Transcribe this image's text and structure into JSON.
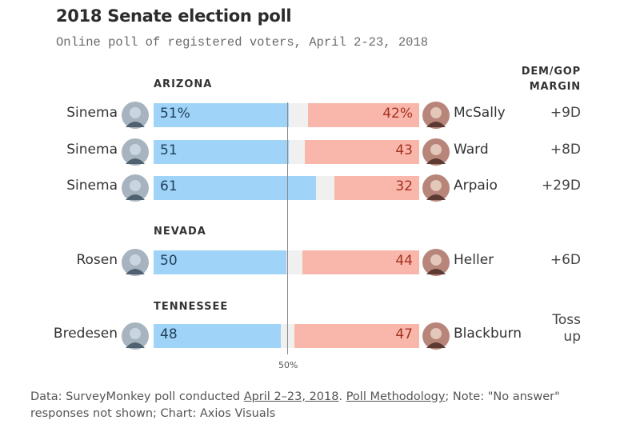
{
  "title": "2018 Senate election poll",
  "subtitle": "Online poll of registered voters, April 2-23, 2018",
  "margin_header": [
    "DEM/GOP",
    "MARGIN"
  ],
  "midline_label": "50%",
  "source": {
    "prefix": "Data: SurveyMonkey poll conducted ",
    "link1": "April 2–23, 2018",
    "sep": ". ",
    "link2": "Poll Methodology",
    "suffix": "; Note: \"No answer\" responses not shown; Chart: Axios Visuals"
  },
  "colors": {
    "dem": "#9fd3f7",
    "gop": "#f9b7ab",
    "gap": "#f0f0f0"
  },
  "chart_data": {
    "type": "bar",
    "groups": [
      {
        "state": "ARIZONA",
        "rows": [
          {
            "dem": "Sinema",
            "dem_pct": 51,
            "dem_label": "51%",
            "gop": "McSally",
            "gop_pct": 42,
            "gop_label": "42%",
            "margin": "+9D"
          },
          {
            "dem": "Sinema",
            "dem_pct": 51,
            "dem_label": "51",
            "gop": "Ward",
            "gop_pct": 43,
            "gop_label": "43",
            "margin": "+8D"
          },
          {
            "dem": "Sinema",
            "dem_pct": 61,
            "dem_label": "61",
            "gop": "Arpaio",
            "gop_pct": 32,
            "gop_label": "32",
            "margin": "+29D"
          }
        ]
      },
      {
        "state": "NEVADA",
        "rows": [
          {
            "dem": "Rosen",
            "dem_pct": 50,
            "dem_label": "50",
            "gop": "Heller",
            "gop_pct": 44,
            "gop_label": "44",
            "margin": "+6D"
          }
        ]
      },
      {
        "state": "TENNESSEE",
        "rows": [
          {
            "dem": "Bredesen",
            "dem_pct": 48,
            "dem_label": "48",
            "gop": "Blackburn",
            "gop_pct": 47,
            "gop_label": "47",
            "margin": "Toss up"
          }
        ]
      }
    ]
  }
}
